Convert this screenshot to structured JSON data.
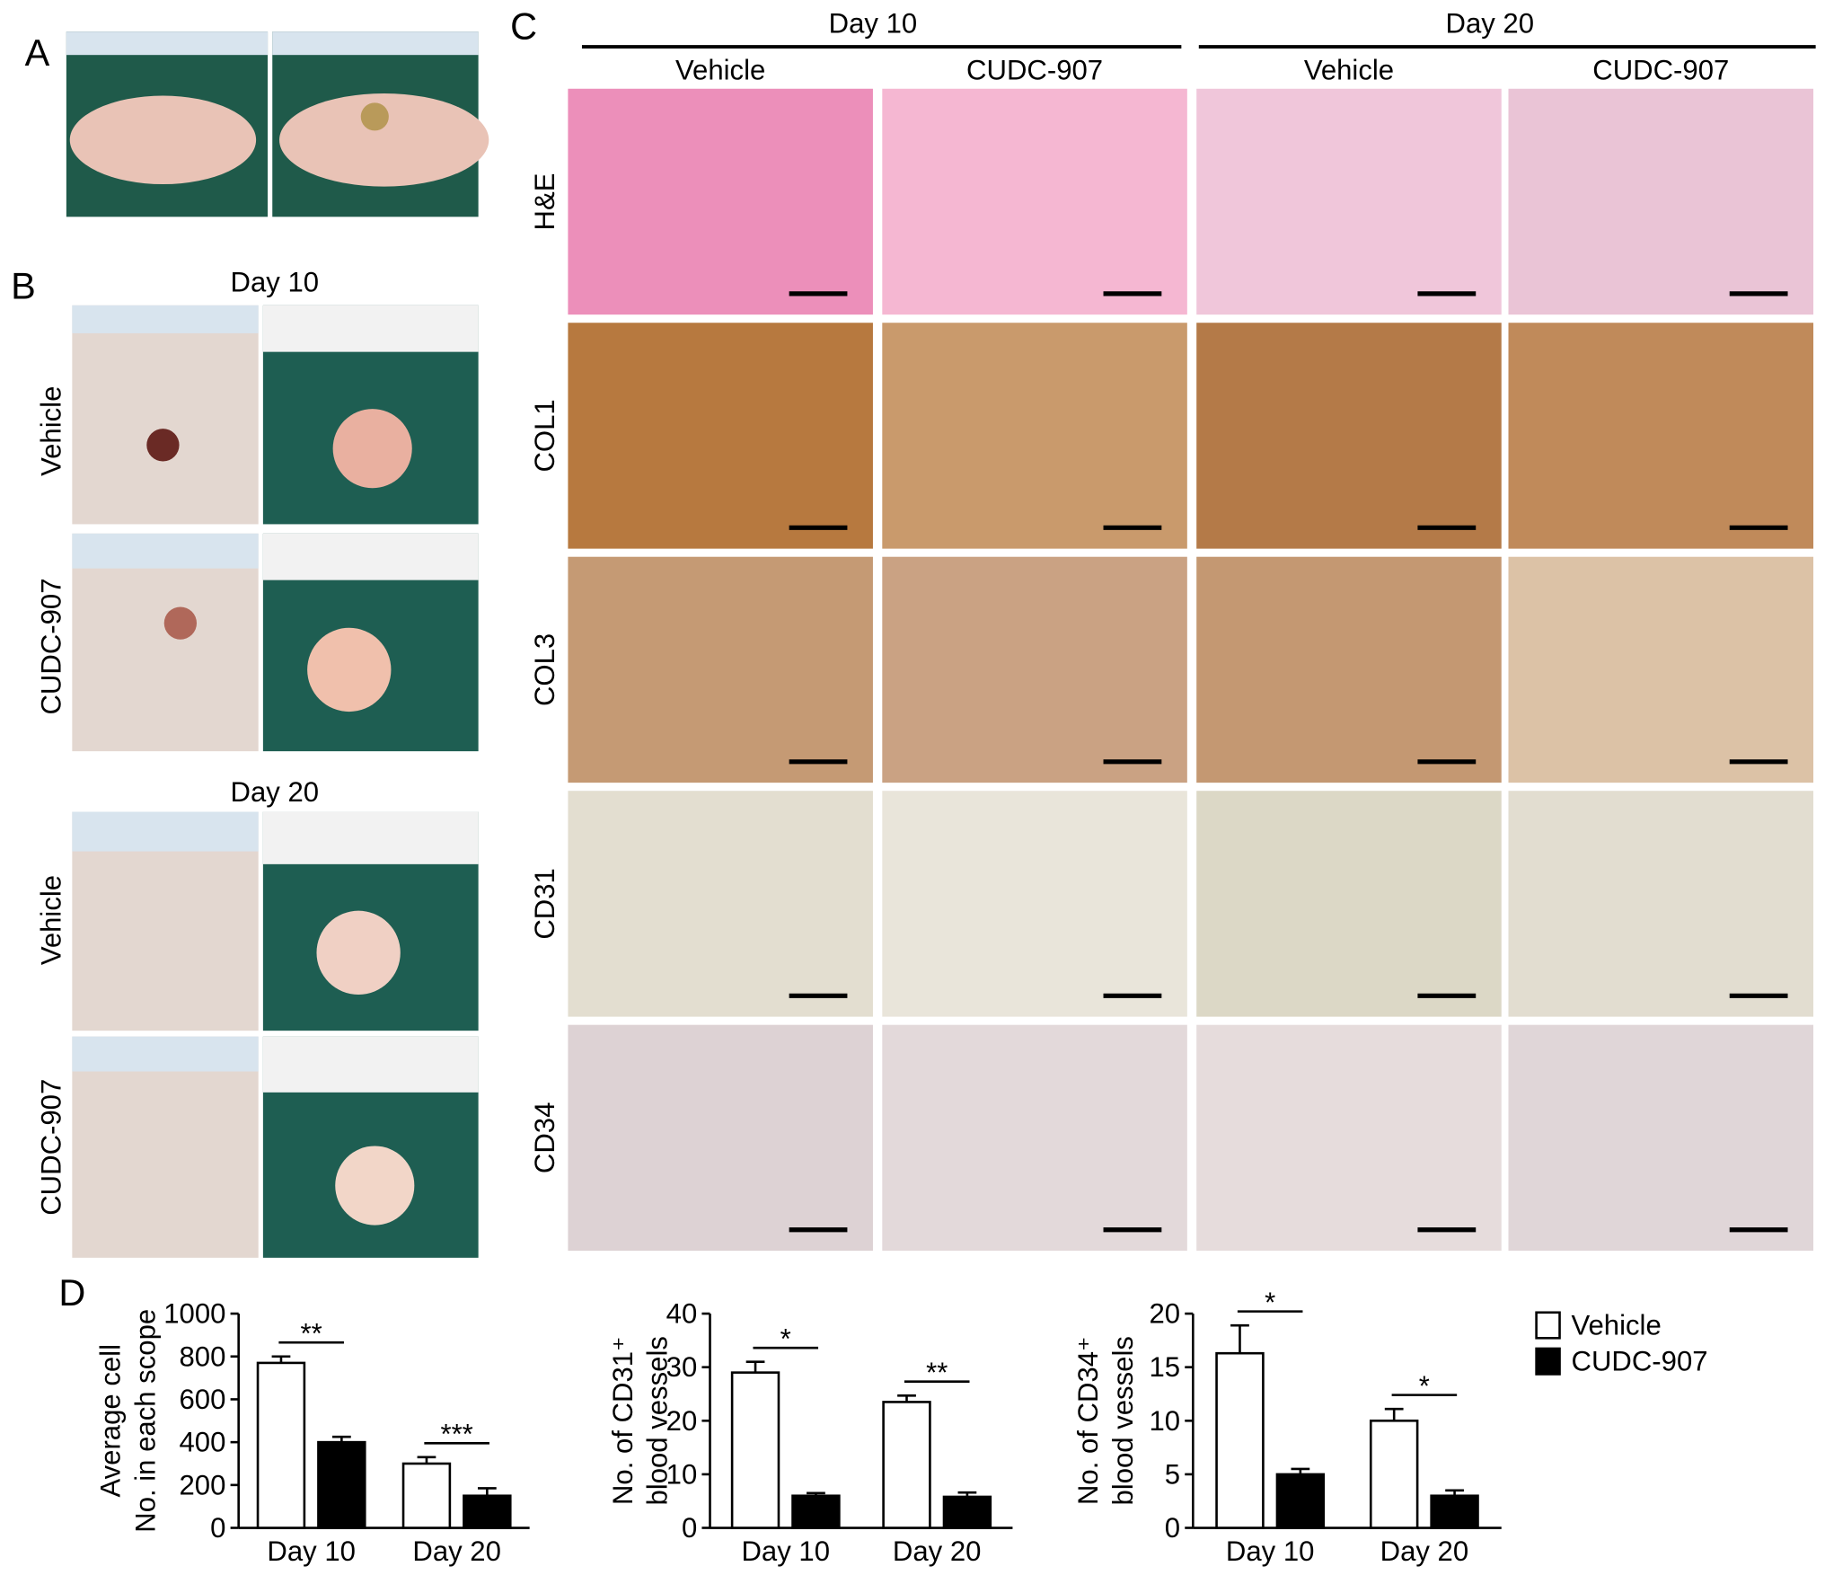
{
  "panel_labels": [
    "A",
    "B",
    "C",
    "D"
  ],
  "panel_b": {
    "groups": [
      {
        "title": "Day 10",
        "rows": [
          "Vehicle",
          "CUDC-907"
        ]
      },
      {
        "title": "Day 20",
        "rows": [
          "Vehicle",
          "CUDC-907"
        ]
      }
    ]
  },
  "panel_c": {
    "days": [
      "Day 10",
      "Day 20"
    ],
    "columns": [
      "Vehicle",
      "CUDC-907",
      "Vehicle",
      "CUDC-907"
    ],
    "rows": [
      "H&E",
      "COL1",
      "COL3",
      "CD31",
      "CD34"
    ]
  },
  "chart_data": [
    {
      "type": "bar",
      "y_label": [
        "Average cell",
        "No. in each scope"
      ],
      "categories": [
        "Day 10",
        "Day 20"
      ],
      "series": [
        {
          "color": "#ffffff",
          "values": [
            770,
            300
          ],
          "errors": [
            30,
            30
          ]
        },
        {
          "color": "#000000",
          "values": [
            400,
            150
          ],
          "errors": [
            25,
            35
          ]
        }
      ],
      "significance": [
        "**",
        "***"
      ],
      "ylim": [
        0,
        1000
      ],
      "yticks": [
        0,
        200,
        400,
        600,
        800,
        1000
      ]
    },
    {
      "type": "bar",
      "y_label": [
        "No. of CD31⁺",
        "blood vessels"
      ],
      "categories": [
        "Day 10",
        "Day 20"
      ],
      "series": [
        {
          "color": "#ffffff",
          "values": [
            29,
            23.5
          ],
          "errors": [
            2,
            1.2
          ]
        },
        {
          "color": "#000000",
          "values": [
            6,
            5.8
          ],
          "errors": [
            0.5,
            0.8
          ]
        }
      ],
      "significance": [
        "*",
        "**"
      ],
      "ylim": [
        0,
        40
      ],
      "yticks": [
        0,
        10,
        20,
        30,
        40
      ]
    },
    {
      "type": "bar",
      "y_label": [
        "No. of CD34⁺",
        "blood vessels"
      ],
      "categories": [
        "Day 10",
        "Day 20"
      ],
      "series": [
        {
          "name": "Vehicle",
          "color": "#ffffff",
          "values": [
            16.3,
            10
          ],
          "errors": [
            2.6,
            1.1
          ]
        },
        {
          "name": "CUDC-907",
          "color": "#000000",
          "values": [
            5,
            3
          ],
          "errors": [
            0.5,
            0.5
          ]
        }
      ],
      "significance": [
        "*",
        "*"
      ],
      "ylim": [
        0,
        20
      ],
      "yticks": [
        0,
        5,
        10,
        15,
        20
      ]
    }
  ]
}
